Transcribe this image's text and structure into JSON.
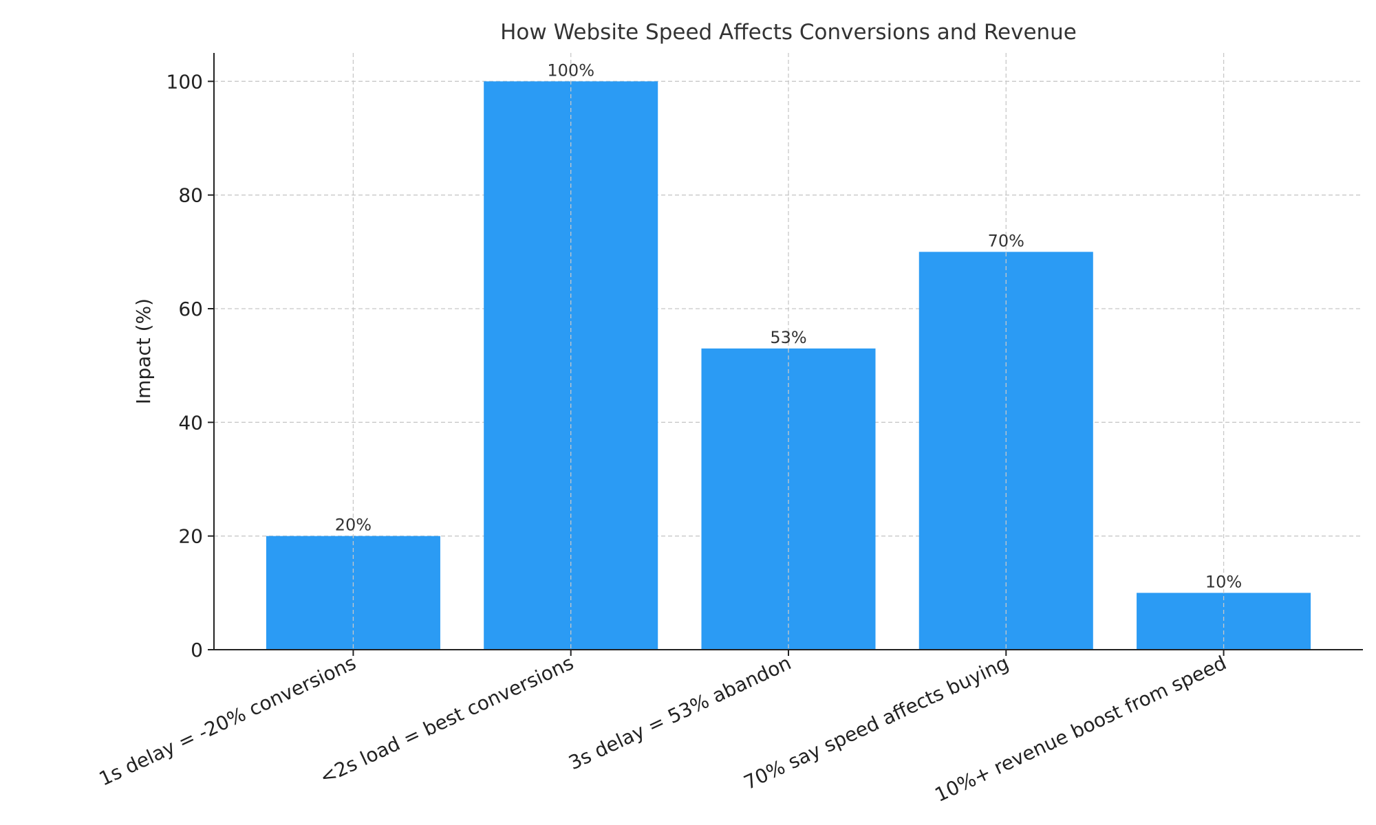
{
  "chart_data": {
    "type": "bar",
    "title": "How Website Speed Affects Conversions and Revenue",
    "xlabel": "",
    "ylabel": "Impact (%)",
    "categories": [
      "1s delay = -20% conversions",
      "<2s load = best conversions",
      "3s delay = 53% abandon",
      "70% say speed affects buying",
      "10%+ revenue boost from speed"
    ],
    "values": [
      20,
      100,
      53,
      70,
      10
    ],
    "data_labels": [
      "20%",
      "100%",
      "53%",
      "70%",
      "10%"
    ],
    "ylim": [
      0,
      105
    ],
    "yticks": [
      0,
      20,
      40,
      60,
      80,
      100
    ],
    "grid": true,
    "grid_style": "dashed",
    "bar_color": "#2b9bf4",
    "xtick_rotation": 25
  }
}
